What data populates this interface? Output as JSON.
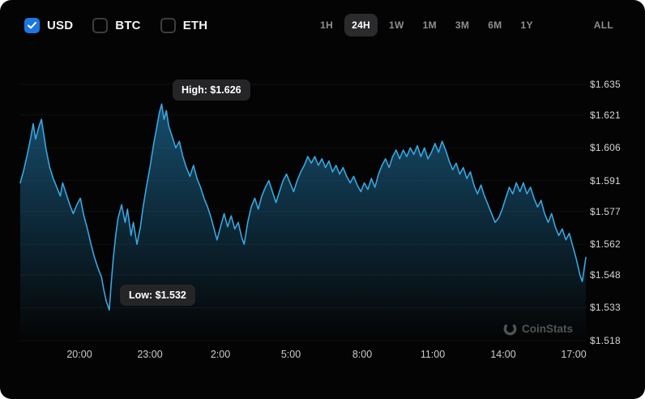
{
  "header": {
    "currencies": [
      {
        "label": "USD",
        "checked": true
      },
      {
        "label": "BTC",
        "checked": false
      },
      {
        "label": "ETH",
        "checked": false
      }
    ],
    "ranges": [
      "1H",
      "24H",
      "1W",
      "1M",
      "3M",
      "6M",
      "1Y",
      "ALL"
    ],
    "selected_range": "24H"
  },
  "annotations": {
    "high": "High: $1.626",
    "low": "Low: $1.532"
  },
  "watermark": {
    "text": "CoinStats"
  },
  "colors": {
    "background": "#040404",
    "accent_blue": "#1d76e2",
    "line": "#36a7e0",
    "area": "#2996d4",
    "tooltip_bg": "#252527",
    "label_gray": "#d4d4d4",
    "muted_gray": "#8e8e8e"
  },
  "chart_data": {
    "type": "area",
    "currency": "USD",
    "period": "24H",
    "x_range": [
      0,
      24
    ],
    "y_range": [
      1.518,
      1.635
    ],
    "grid": "horizontal-faint",
    "legend": "none",
    "y_axis_side": "right",
    "y_ticks": [
      {
        "value": 1.635,
        "label": "$1.635"
      },
      {
        "value": 1.621,
        "label": "$1.621"
      },
      {
        "value": 1.606,
        "label": "$1.606"
      },
      {
        "value": 1.591,
        "label": "$1.591"
      },
      {
        "value": 1.577,
        "label": "$1.577"
      },
      {
        "value": 1.562,
        "label": "$1.562"
      },
      {
        "value": 1.548,
        "label": "$1.548"
      },
      {
        "value": 1.533,
        "label": "$1.533"
      },
      {
        "value": 1.518,
        "label": "$1.518"
      }
    ],
    "x_ticks": [
      {
        "t": 2.5,
        "label": "20:00"
      },
      {
        "t": 5.5,
        "label": "23:00"
      },
      {
        "t": 8.5,
        "label": "2:00"
      },
      {
        "t": 11.5,
        "label": "5:00"
      },
      {
        "t": 14.5,
        "label": "8:00"
      },
      {
        "t": 17.5,
        "label": "11:00"
      },
      {
        "t": 20.5,
        "label": "14:00"
      },
      {
        "t": 23.5,
        "label": "17:00"
      }
    ],
    "high": {
      "t": 6.0,
      "price": 1.626
    },
    "low": {
      "t": 3.78,
      "price": 1.532
    },
    "points": [
      [
        0,
        1.59
      ],
      [
        0.15,
        1.596
      ],
      [
        0.3,
        1.603
      ],
      [
        0.45,
        1.611
      ],
      [
        0.55,
        1.617
      ],
      [
        0.65,
        1.61
      ],
      [
        0.8,
        1.616
      ],
      [
        0.9,
        1.619
      ],
      [
        1.0,
        1.612
      ],
      [
        1.1,
        1.605
      ],
      [
        1.25,
        1.597
      ],
      [
        1.4,
        1.592
      ],
      [
        1.55,
        1.588
      ],
      [
        1.7,
        1.584
      ],
      [
        1.8,
        1.59
      ],
      [
        1.95,
        1.585
      ],
      [
        2.1,
        1.58
      ],
      [
        2.25,
        1.576
      ],
      [
        2.4,
        1.58
      ],
      [
        2.55,
        1.583
      ],
      [
        2.7,
        1.575
      ],
      [
        2.85,
        1.569
      ],
      [
        3.0,
        1.562
      ],
      [
        3.15,
        1.556
      ],
      [
        3.3,
        1.551
      ],
      [
        3.45,
        1.547
      ],
      [
        3.55,
        1.541
      ],
      [
        3.65,
        1.536
      ],
      [
        3.78,
        1.532
      ],
      [
        3.85,
        1.543
      ],
      [
        3.95,
        1.556
      ],
      [
        4.05,
        1.566
      ],
      [
        4.15,
        1.574
      ],
      [
        4.3,
        1.58
      ],
      [
        4.45,
        1.572
      ],
      [
        4.55,
        1.578
      ],
      [
        4.7,
        1.566
      ],
      [
        4.8,
        1.572
      ],
      [
        4.95,
        1.562
      ],
      [
        5.1,
        1.57
      ],
      [
        5.2,
        1.578
      ],
      [
        5.35,
        1.588
      ],
      [
        5.5,
        1.597
      ],
      [
        5.65,
        1.607
      ],
      [
        5.8,
        1.616
      ],
      [
        5.9,
        1.622
      ],
      [
        6.0,
        1.626
      ],
      [
        6.1,
        1.619
      ],
      [
        6.2,
        1.623
      ],
      [
        6.3,
        1.616
      ],
      [
        6.45,
        1.611
      ],
      [
        6.6,
        1.606
      ],
      [
        6.75,
        1.609
      ],
      [
        6.9,
        1.602
      ],
      [
        7.05,
        1.597
      ],
      [
        7.2,
        1.593
      ],
      [
        7.35,
        1.598
      ],
      [
        7.5,
        1.592
      ],
      [
        7.65,
        1.588
      ],
      [
        7.8,
        1.583
      ],
      [
        7.95,
        1.579
      ],
      [
        8.1,
        1.574
      ],
      [
        8.25,
        1.568
      ],
      [
        8.35,
        1.564
      ],
      [
        8.5,
        1.57
      ],
      [
        8.65,
        1.576
      ],
      [
        8.8,
        1.57
      ],
      [
        8.95,
        1.575
      ],
      [
        9.1,
        1.569
      ],
      [
        9.25,
        1.572
      ],
      [
        9.4,
        1.565
      ],
      [
        9.5,
        1.562
      ],
      [
        9.65,
        1.572
      ],
      [
        9.8,
        1.579
      ],
      [
        9.95,
        1.583
      ],
      [
        10.1,
        1.578
      ],
      [
        10.25,
        1.584
      ],
      [
        10.4,
        1.588
      ],
      [
        10.55,
        1.591
      ],
      [
        10.7,
        1.586
      ],
      [
        10.85,
        1.581
      ],
      [
        11.0,
        1.586
      ],
      [
        11.15,
        1.591
      ],
      [
        11.3,
        1.594
      ],
      [
        11.45,
        1.59
      ],
      [
        11.6,
        1.586
      ],
      [
        11.75,
        1.591
      ],
      [
        11.9,
        1.595
      ],
      [
        12.05,
        1.598
      ],
      [
        12.2,
        1.602
      ],
      [
        12.35,
        1.599
      ],
      [
        12.5,
        1.602
      ],
      [
        12.65,
        1.598
      ],
      [
        12.8,
        1.601
      ],
      [
        12.95,
        1.597
      ],
      [
        13.1,
        1.6
      ],
      [
        13.25,
        1.595
      ],
      [
        13.4,
        1.598
      ],
      [
        13.55,
        1.594
      ],
      [
        13.7,
        1.597
      ],
      [
        13.85,
        1.593
      ],
      [
        14.0,
        1.59
      ],
      [
        14.15,
        1.593
      ],
      [
        14.3,
        1.589
      ],
      [
        14.45,
        1.586
      ],
      [
        14.6,
        1.59
      ],
      [
        14.75,
        1.587
      ],
      [
        14.9,
        1.592
      ],
      [
        15.05,
        1.588
      ],
      [
        15.2,
        1.594
      ],
      [
        15.35,
        1.598
      ],
      [
        15.5,
        1.601
      ],
      [
        15.65,
        1.597
      ],
      [
        15.8,
        1.602
      ],
      [
        15.95,
        1.605
      ],
      [
        16.1,
        1.601
      ],
      [
        16.25,
        1.605
      ],
      [
        16.4,
        1.602
      ],
      [
        16.55,
        1.606
      ],
      [
        16.7,
        1.603
      ],
      [
        16.85,
        1.607
      ],
      [
        17.0,
        1.602
      ],
      [
        17.15,
        1.606
      ],
      [
        17.3,
        1.601
      ],
      [
        17.45,
        1.604
      ],
      [
        17.6,
        1.608
      ],
      [
        17.75,
        1.604
      ],
      [
        17.9,
        1.609
      ],
      [
        18.05,
        1.605
      ],
      [
        18.2,
        1.6
      ],
      [
        18.35,
        1.596
      ],
      [
        18.5,
        1.599
      ],
      [
        18.65,
        1.594
      ],
      [
        18.8,
        1.597
      ],
      [
        18.95,
        1.592
      ],
      [
        19.1,
        1.595
      ],
      [
        19.25,
        1.589
      ],
      [
        19.4,
        1.585
      ],
      [
        19.55,
        1.589
      ],
      [
        19.7,
        1.584
      ],
      [
        19.85,
        1.58
      ],
      [
        20.0,
        1.576
      ],
      [
        20.15,
        1.572
      ],
      [
        20.3,
        1.574
      ],
      [
        20.45,
        1.578
      ],
      [
        20.6,
        1.583
      ],
      [
        20.75,
        1.588
      ],
      [
        20.9,
        1.585
      ],
      [
        21.05,
        1.59
      ],
      [
        21.2,
        1.586
      ],
      [
        21.35,
        1.59
      ],
      [
        21.5,
        1.585
      ],
      [
        21.65,
        1.588
      ],
      [
        21.8,
        1.583
      ],
      [
        21.95,
        1.579
      ],
      [
        22.1,
        1.582
      ],
      [
        22.25,
        1.576
      ],
      [
        22.4,
        1.572
      ],
      [
        22.55,
        1.576
      ],
      [
        22.7,
        1.57
      ],
      [
        22.85,
        1.566
      ],
      [
        23.0,
        1.569
      ],
      [
        23.15,
        1.564
      ],
      [
        23.3,
        1.567
      ],
      [
        23.45,
        1.561
      ],
      [
        23.6,
        1.555
      ],
      [
        23.75,
        1.548
      ],
      [
        23.85,
        1.545
      ],
      [
        24.0,
        1.556
      ]
    ]
  }
}
